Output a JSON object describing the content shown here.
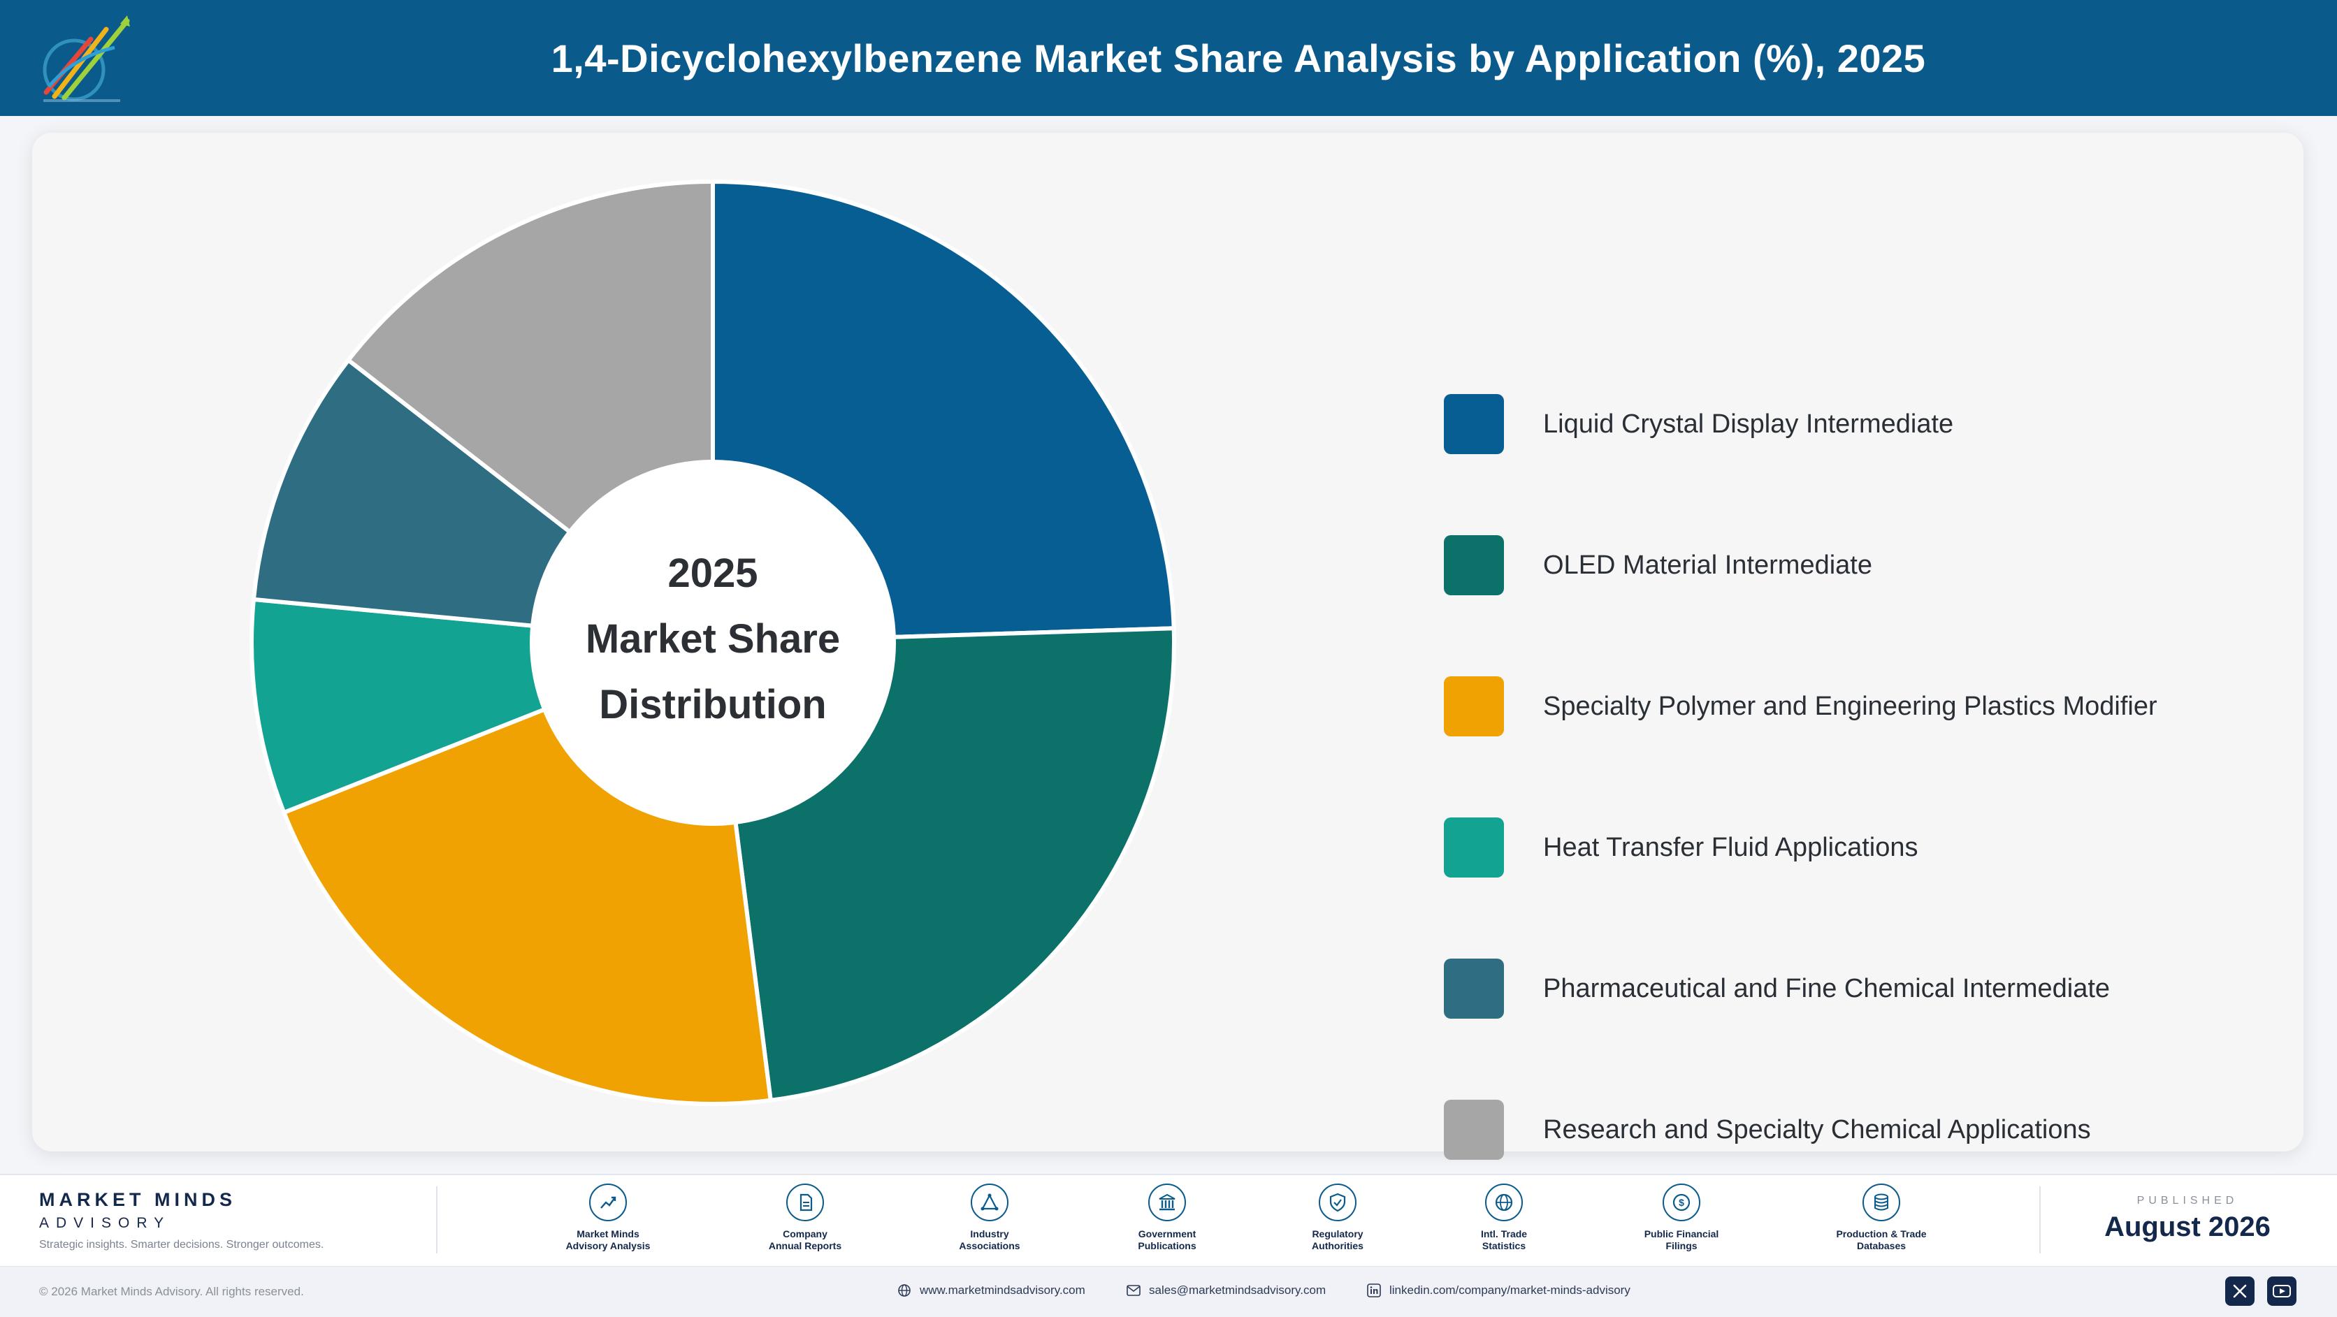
{
  "header": {
    "title": "1,4-Dicyclohexylbenzene Market Share Analysis by Application (%), 2025"
  },
  "chart_data": {
    "type": "pie",
    "title": "1,4-Dicyclohexylbenzene Market Share Analysis by Application (%), 2025",
    "center_label": [
      "2025",
      "Market Share",
      "Distribution"
    ],
    "legend_position": "right",
    "categories": [
      "Liquid Crystal Display Intermediate",
      "OLED Material Intermediate",
      "Specialty Polymer and Engineering Plastics Modifier",
      "Heat Transfer Fluid Applications",
      "Pharmaceutical and Fine Chemical Intermediate",
      "Research and Specialty Chemical Applications"
    ],
    "values": [
      24.5,
      23.5,
      21,
      7.5,
      9,
      14.5
    ],
    "colors": [
      "#075e93",
      "#0b7169",
      "#f0a202",
      "#12a392",
      "#2f6e82",
      "#a6a6a6"
    ]
  },
  "footer": {
    "brand_name": "MARKET MINDS",
    "brand_sub": "ADVISORY",
    "tagline": "Strategic insights. Smarter decisions. Stronger outcomes.",
    "sources": [
      {
        "line1": "Market Minds",
        "line2": "Advisory Analysis",
        "icon": "trend-chart-icon"
      },
      {
        "line1": "Company",
        "line2": "Annual Reports",
        "icon": "document-icon"
      },
      {
        "line1": "Industry",
        "line2": "Associations",
        "icon": "network-icon"
      },
      {
        "line1": "Government",
        "line2": "Publications",
        "icon": "government-building-icon"
      },
      {
        "line1": "Regulatory",
        "line2": "Authorities",
        "icon": "shield-check-icon"
      },
      {
        "line1": "Intl. Trade",
        "line2": "Statistics",
        "icon": "globe-icon"
      },
      {
        "line1": "Public Financial",
        "line2": "Filings",
        "icon": "coin-icon"
      },
      {
        "line1": "Production & Trade",
        "line2": "Databases",
        "icon": "database-icon"
      }
    ],
    "published_label": "PUBLISHED",
    "published_date": "August 2026",
    "copyright": "© 2026 Market Minds Advisory. All rights reserved.",
    "website": "www.marketmindsadvisory.com",
    "email": "sales@marketmindsadvisory.com",
    "linkedin": "linkedin.com/company/market-minds-advisory"
  }
}
